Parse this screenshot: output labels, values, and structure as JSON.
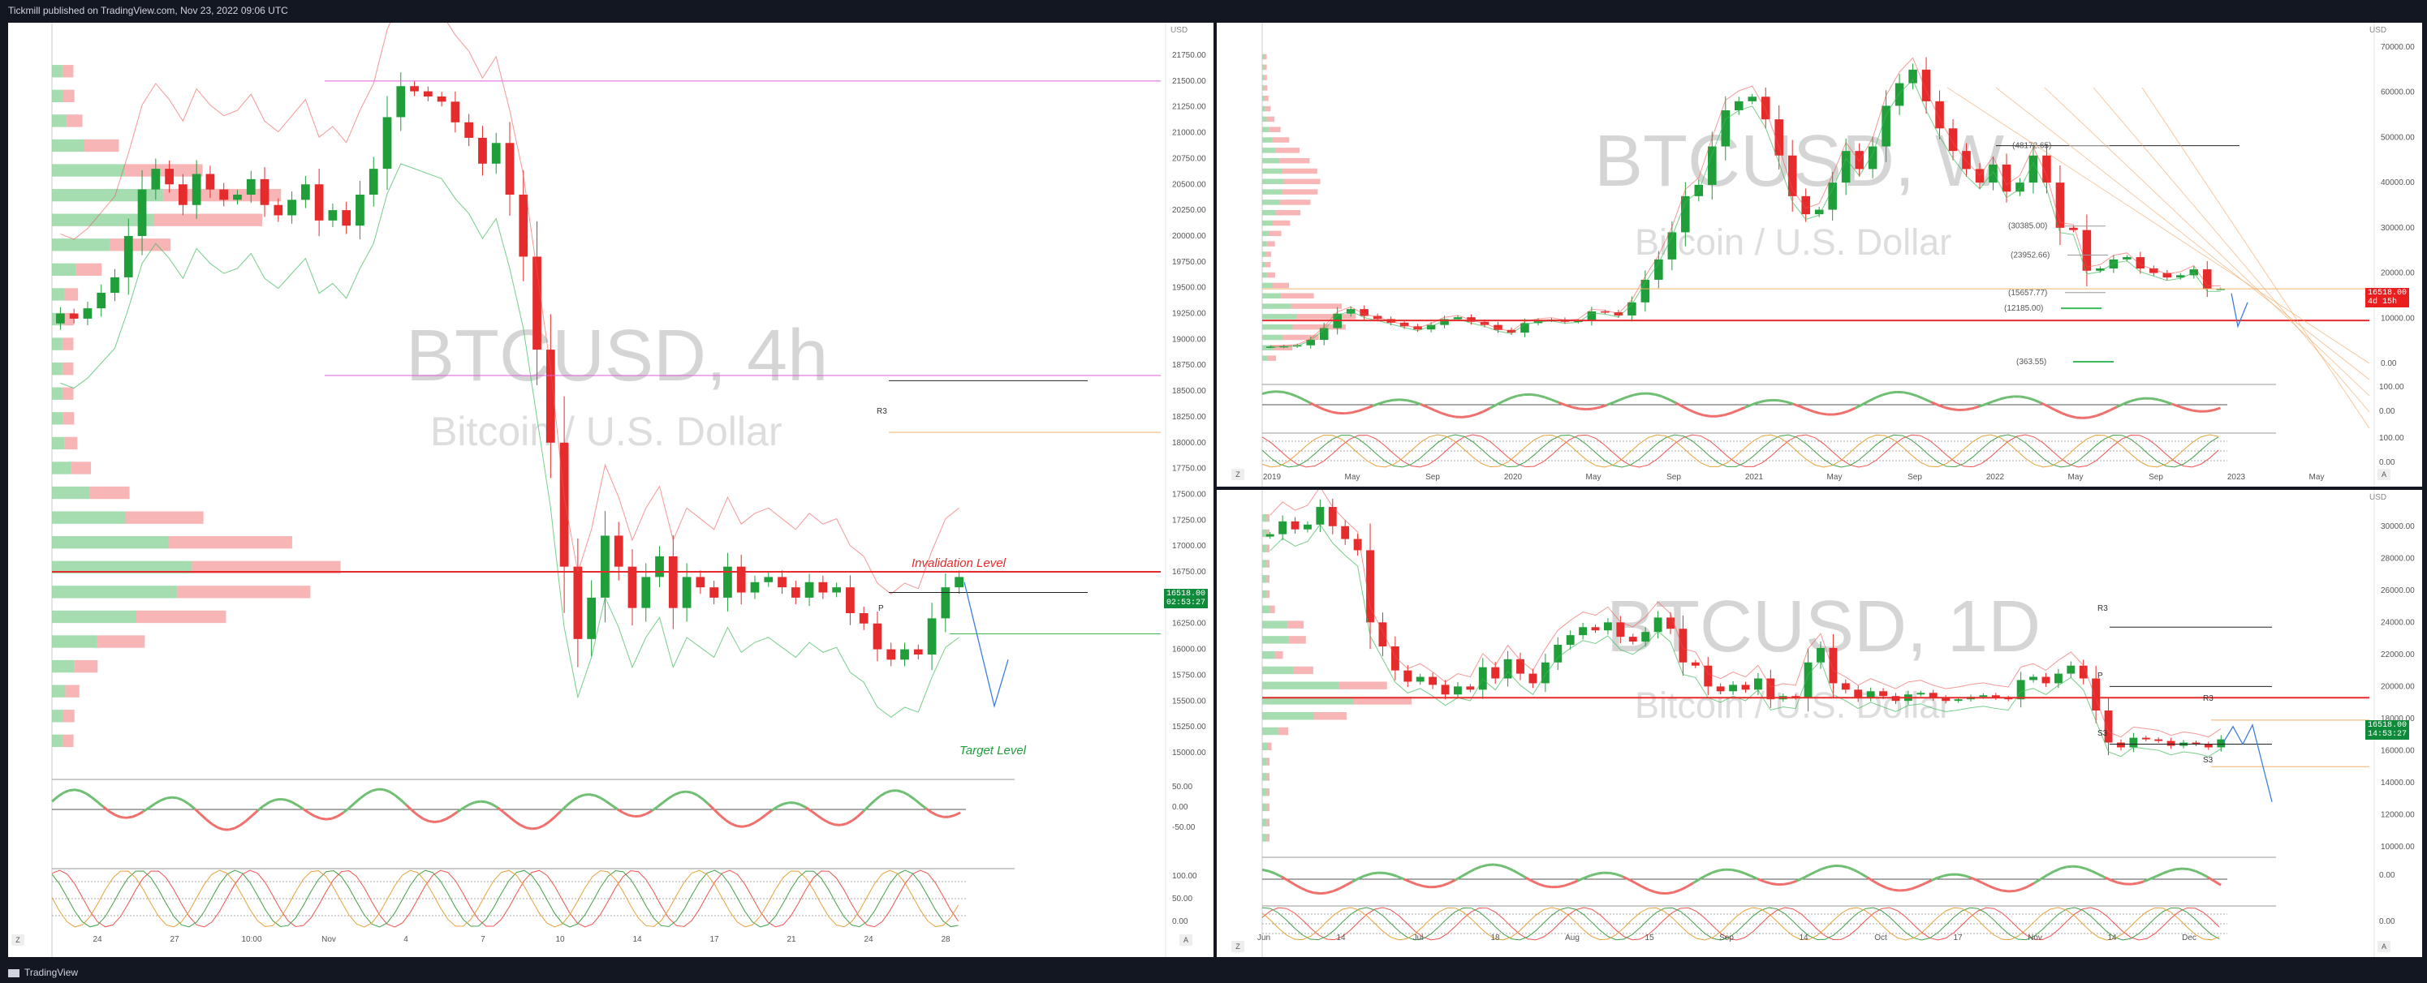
{
  "header": {
    "text": "Tickmill published on TradingView.com, Nov 23, 2022 09:06 UTC"
  },
  "footer": {
    "text": "TradingView"
  },
  "colors": {
    "up": "#1f9e3a",
    "down": "#e52b2b",
    "bg": "#131722"
  },
  "panes": {
    "left": {
      "symbol": "BTCUSD, 4h",
      "name": "Bitcoin / U.S. Dollar",
      "price_label": "16518.00",
      "countdown": "02:53:27",
      "currency": "USD",
      "annotations": {
        "invalidation": "Invalidation Level",
        "target": "Target Level",
        "r3": "R3",
        "p": "P"
      },
      "x_ticks": [
        "24",
        "27",
        "10:00",
        "Nov",
        "4",
        "7",
        "10",
        "14",
        "17",
        "21",
        "24",
        "28"
      ],
      "osc_ticks": [
        "50.00",
        "0.00",
        "-50.00"
      ],
      "stoch_ticks": [
        "100.00",
        "50.00",
        "0.00"
      ],
      "zoom_z": "Z",
      "zoom_a": "A"
    },
    "rw": {
      "symbol": "BTCUSD, W",
      "name": "Bitcoin / U.S. Dollar",
      "price_label": "16518.00",
      "countdown": "4d 15h",
      "currency": "USD",
      "levels": [
        "(48172.65)",
        "(30385.00)",
        "(23952.66)",
        "(15657.77)",
        "(12185.00)",
        "(363.55)"
      ],
      "x_ticks": [
        "2019",
        "May",
        "Sep",
        "2020",
        "May",
        "Sep",
        "2021",
        "May",
        "Sep",
        "2022",
        "May",
        "Sep",
        "2023",
        "May"
      ],
      "osc_ticks": [
        "100.00",
        "0.00"
      ],
      "stoch_ticks": [
        "100.00",
        "0.00"
      ],
      "zoom_z": "Z",
      "zoom_a": "A"
    },
    "rd": {
      "symbol": "BTCUSD, 1D",
      "name": "Bitcoin / U.S. Dollar",
      "price_label": "16518.00",
      "countdown": "14:53:27",
      "currency": "USD",
      "annotations": {
        "r3a": "R3",
        "p": "P",
        "r3b": "R3",
        "s3a": "S3",
        "s3b": "S3"
      },
      "x_ticks": [
        "Jun",
        "14",
        "Jul",
        "18",
        "Aug",
        "15",
        "Sep",
        "14",
        "Oct",
        "17",
        "Nov",
        "14",
        "Dec"
      ],
      "osc_ticks": [
        "0.00"
      ],
      "stoch_ticks": [
        "0.00"
      ],
      "zoom_z": "Z",
      "zoom_a": "A"
    }
  },
  "chart_data": [
    {
      "type": "candlestick",
      "title": "BTCUSD, 4h",
      "subtitle": "Bitcoin / U.S. Dollar",
      "ylim": [
        15000,
        21750
      ],
      "y_ticks": [
        21750,
        21500,
        21250,
        21000,
        20750,
        20500,
        20250,
        20000,
        19750,
        19500,
        19250,
        19000,
        18750,
        18500,
        18250,
        18000,
        17750,
        17500,
        17250,
        17000,
        16750,
        16500,
        16250,
        16000,
        15750,
        15500,
        15250,
        15000
      ],
      "closes": [
        19250,
        19200,
        19300,
        19450,
        19600,
        20000,
        20450,
        20650,
        20500,
        20300,
        20600,
        20450,
        20350,
        20400,
        20550,
        20300,
        20200,
        20350,
        20500,
        20150,
        20250,
        20100,
        20400,
        20650,
        21150,
        21450,
        21400,
        21350,
        21300,
        21100,
        20950,
        20700,
        20900,
        20400,
        19800,
        18900,
        18000,
        16800,
        16100,
        16500,
        17100,
        16800,
        16400,
        16700,
        16900,
        16400,
        16700,
        16600,
        16500,
        16800,
        16550,
        16650,
        16700,
        16600,
        16500,
        16650,
        16550,
        16600,
        16350,
        16250,
        16000,
        15900,
        16000,
        15950,
        16300,
        16600,
        16700
      ],
      "horizontal_levels": [
        21500,
        18650,
        18100,
        16750,
        16550,
        16150
      ],
      "invalidation_level": 16750,
      "target_level_label": "Target Level"
    },
    {
      "type": "candlestick",
      "title": "BTCUSD, W",
      "subtitle": "Bitcoin / U.S. Dollar",
      "ylim": [
        0,
        70000
      ],
      "y_ticks": [
        70000,
        60000,
        50000,
        40000,
        30000,
        20000,
        10000,
        0
      ],
      "closes": [
        3700,
        3800,
        4000,
        5200,
        7800,
        11000,
        12000,
        10500,
        9800,
        9000,
        8200,
        7500,
        8500,
        9800,
        10200,
        9200,
        8500,
        7400,
        6800,
        8900,
        9500,
        9700,
        9200,
        9400,
        11500,
        11300,
        10600,
        13500,
        18500,
        23000,
        29000,
        37000,
        39500,
        48000,
        56000,
        58000,
        59000,
        54000,
        46000,
        37000,
        33000,
        34000,
        40000,
        47000,
        43000,
        48000,
        57000,
        62000,
        65000,
        58000,
        52000,
        47000,
        43000,
        40000,
        44000,
        38000,
        40000,
        46000,
        40000,
        30000,
        29500,
        20500,
        21000,
        23000,
        23500,
        21000,
        20000,
        19000,
        19500,
        20800,
        16500,
        16500
      ],
      "levels": [
        48172.65,
        30385.0,
        23952.66,
        15657.77,
        12185.0,
        363.55
      ],
      "horizontal_level": 9500,
      "oscillator_ticks": [
        "100.00",
        "0.00"
      ]
    },
    {
      "type": "candlestick",
      "title": "BTCUSD, 1D",
      "subtitle": "Bitcoin / U.S. Dollar",
      "ylim": [
        10000,
        31000
      ],
      "y_ticks": [
        30000,
        28000,
        26000,
        24000,
        22000,
        20000,
        18000,
        16000,
        14000,
        12000,
        10000
      ],
      "closes": [
        29500,
        30300,
        29800,
        30100,
        31200,
        30000,
        29200,
        28500,
        24000,
        22500,
        21000,
        20300,
        20600,
        20100,
        19500,
        20000,
        19800,
        21200,
        20500,
        21700,
        20800,
        20200,
        21500,
        22600,
        23200,
        23700,
        23500,
        24000,
        23100,
        22800,
        23400,
        24300,
        23600,
        21500,
        21300,
        20000,
        19700,
        20100,
        19800,
        20500,
        19200,
        19400,
        19300,
        21500,
        22400,
        20200,
        19800,
        19300,
        19700,
        19400,
        19100,
        19500,
        19600,
        19300,
        19100,
        19200,
        19350,
        19450,
        19300,
        19200,
        20400,
        20600,
        20200,
        20800,
        21300,
        20500,
        18500,
        16500,
        16200,
        16800,
        16700,
        16600,
        16300,
        16500,
        16400,
        16200,
        16700
      ],
      "levels": {
        "R3_top": 23700,
        "P": 20000,
        "red_line": 19300,
        "R3_low": 17900,
        "S3": 16400,
        "S3_low": 15000
      },
      "projection": [
        16500,
        17500,
        16400,
        17600,
        15200,
        12800
      ]
    }
  ]
}
